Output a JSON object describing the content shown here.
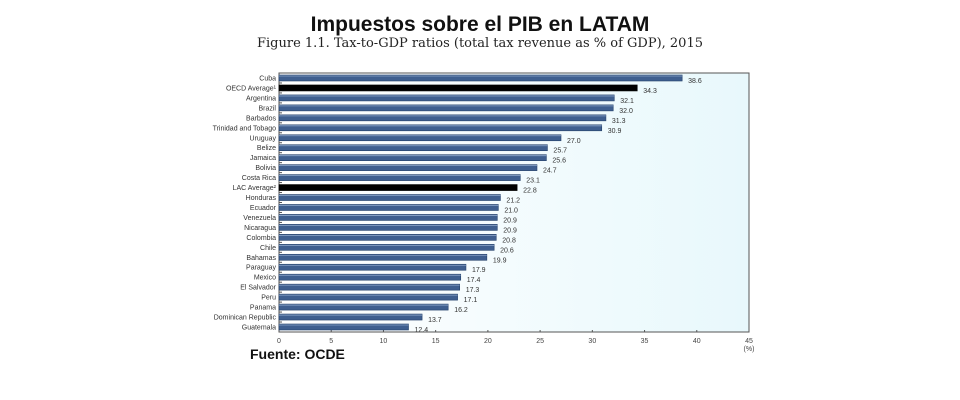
{
  "chart_data": {
    "type": "bar",
    "orientation": "horizontal",
    "title": "Impuestos sobre el PIB en LATAM",
    "subtitle": "Figure 1.1. Tax-to-GDP ratios (total tax revenue as % of GDP), 2015",
    "source": "Fuente: OCDE",
    "xlabel": "(%)",
    "xlim": [
      0,
      45
    ],
    "xticks": [
      "0",
      "5",
      "10",
      "15",
      "20",
      "25",
      "30",
      "35",
      "40",
      "45"
    ],
    "categories": [
      "Cuba",
      "OECD Average¹",
      "Argentina",
      "Brazil",
      "Barbados",
      "Trinidad and Tobago",
      "Uruguay",
      "Belize",
      "Jamaica",
      "Bolivia",
      "Costa Rica",
      "LAC Average²",
      "Honduras",
      "Ecuador",
      "Venezuela",
      "Nicaragua",
      "Colombia",
      "Chile",
      "Bahamas",
      "Paraguay",
      "Mexico",
      "El Salvador",
      "Peru",
      "Panama",
      "Dominican Republic",
      "Guatemala"
    ],
    "values": [
      38.6,
      34.3,
      32.1,
      32.0,
      31.3,
      30.9,
      27.0,
      25.7,
      25.6,
      24.7,
      23.1,
      22.8,
      21.2,
      21.0,
      20.9,
      20.9,
      20.8,
      20.6,
      19.9,
      17.9,
      17.4,
      17.3,
      17.1,
      16.2,
      13.7,
      12.4
    ],
    "value_labels": [
      "38.6",
      "34.3",
      "32.1",
      "32.0",
      "31.3",
      "30.9",
      "27.0",
      "25.7",
      "25.6",
      "24.7",
      "23.1",
      "22.8",
      "21.2",
      "21.0",
      "20.9",
      "20.9",
      "20.8",
      "20.6",
      "19.9",
      "17.9",
      "17.4",
      "17.3",
      "17.1",
      "16.2",
      "13.7",
      "12.4"
    ],
    "highlighted": [
      "OECD Average¹",
      "LAC Average²"
    ],
    "colors": {
      "bar": "#3f5f8f",
      "highlight": "#000000",
      "background": "#e8f8fc"
    }
  }
}
